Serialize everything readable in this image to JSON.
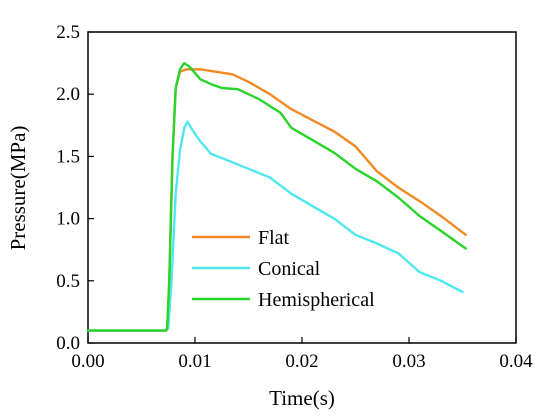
{
  "chart_data": {
    "type": "line",
    "title": "",
    "xlabel": "Time(s)",
    "ylabel": "Pressure(MPa)",
    "xlim": [
      0,
      0.04
    ],
    "ylim": [
      0,
      2.5
    ],
    "x_ticks": [
      "0.00",
      "0.01",
      "0.02",
      "0.03",
      "0.04"
    ],
    "y_ticks": [
      "0.0",
      "0.5",
      "1.0",
      "1.5",
      "2.0",
      "2.5"
    ],
    "grid": false,
    "legend_position": "lower-left inside",
    "series": [
      {
        "name": "Flat",
        "color": "#f28a24",
        "points": [
          [
            0,
            0.1
          ],
          [
            0.0073,
            0.1
          ],
          [
            0.0074,
            0.12
          ],
          [
            0.0076,
            0.5
          ],
          [
            0.0079,
            1.5
          ],
          [
            0.0082,
            2.05
          ],
          [
            0.0086,
            2.18
          ],
          [
            0.0092,
            2.2
          ],
          [
            0.0105,
            2.2
          ],
          [
            0.012,
            2.18
          ],
          [
            0.0135,
            2.16
          ],
          [
            0.015,
            2.1
          ],
          [
            0.017,
            2.0
          ],
          [
            0.019,
            1.88
          ],
          [
            0.021,
            1.79
          ],
          [
            0.023,
            1.7
          ],
          [
            0.025,
            1.58
          ],
          [
            0.027,
            1.38
          ],
          [
            0.029,
            1.25
          ],
          [
            0.031,
            1.14
          ],
          [
            0.033,
            1.02
          ],
          [
            0.0353,
            0.87
          ]
        ]
      },
      {
        "name": "Conical",
        "color": "#4fe8ee",
        "points": [
          [
            0,
            0.1
          ],
          [
            0.0073,
            0.1
          ],
          [
            0.0075,
            0.12
          ],
          [
            0.0078,
            0.5
          ],
          [
            0.0082,
            1.2
          ],
          [
            0.0086,
            1.55
          ],
          [
            0.009,
            1.73
          ],
          [
            0.0093,
            1.78
          ],
          [
            0.0097,
            1.72
          ],
          [
            0.0105,
            1.62
          ],
          [
            0.0115,
            1.52
          ],
          [
            0.013,
            1.47
          ],
          [
            0.015,
            1.4
          ],
          [
            0.017,
            1.33
          ],
          [
            0.019,
            1.2
          ],
          [
            0.021,
            1.1
          ],
          [
            0.023,
            1.0
          ],
          [
            0.025,
            0.87
          ],
          [
            0.027,
            0.8
          ],
          [
            0.029,
            0.72
          ],
          [
            0.031,
            0.57
          ],
          [
            0.033,
            0.5
          ],
          [
            0.035,
            0.41
          ]
        ]
      },
      {
        "name": "Hemispherical",
        "color": "#2ad42a",
        "points": [
          [
            0,
            0.1
          ],
          [
            0.0073,
            0.1
          ],
          [
            0.0074,
            0.12
          ],
          [
            0.0076,
            0.5
          ],
          [
            0.0079,
            1.5
          ],
          [
            0.0082,
            2.05
          ],
          [
            0.0086,
            2.2
          ],
          [
            0.009,
            2.25
          ],
          [
            0.0095,
            2.22
          ],
          [
            0.0105,
            2.12
          ],
          [
            0.0115,
            2.08
          ],
          [
            0.0125,
            2.05
          ],
          [
            0.014,
            2.04
          ],
          [
            0.016,
            1.96
          ],
          [
            0.018,
            1.85
          ],
          [
            0.019,
            1.73
          ],
          [
            0.021,
            1.63
          ],
          [
            0.023,
            1.53
          ],
          [
            0.025,
            1.4
          ],
          [
            0.027,
            1.3
          ],
          [
            0.029,
            1.17
          ],
          [
            0.031,
            1.02
          ],
          [
            0.033,
            0.9
          ],
          [
            0.0353,
            0.76
          ]
        ]
      }
    ]
  }
}
